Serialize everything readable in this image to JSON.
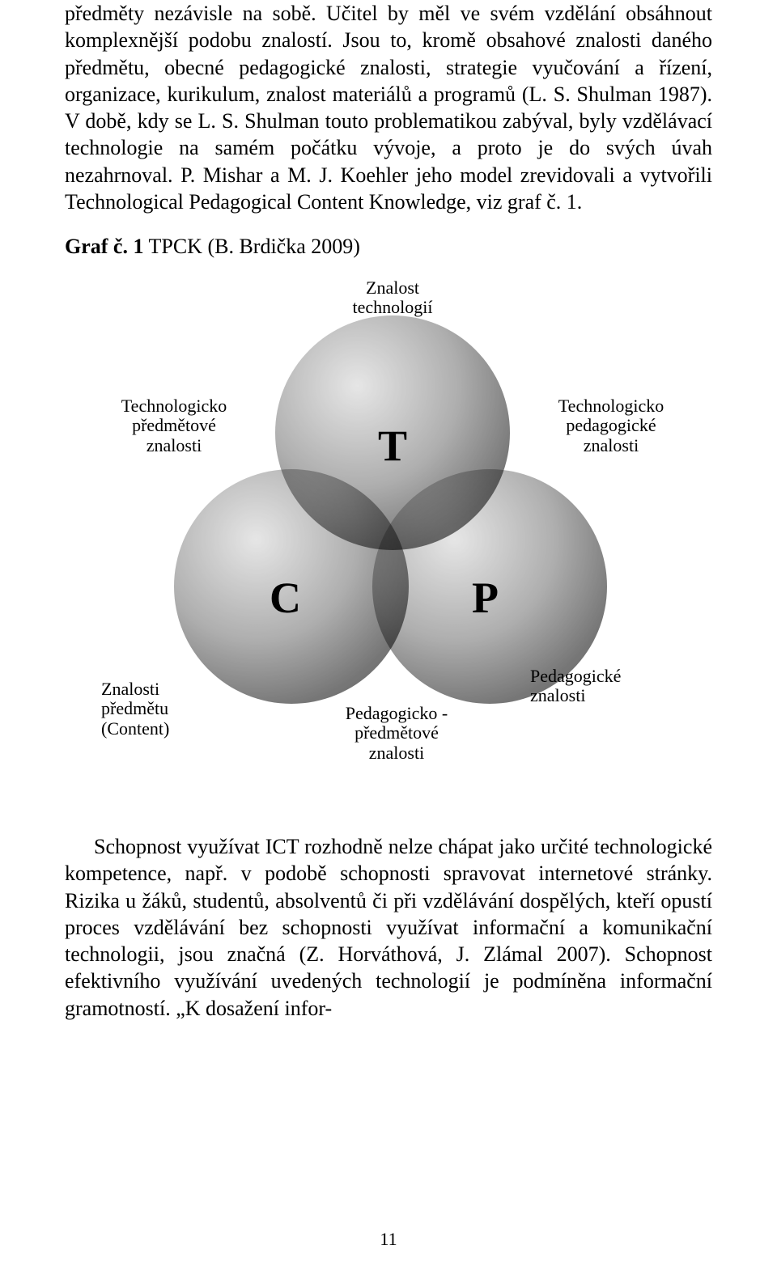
{
  "paragraphs": {
    "p1": "předměty nezávisle na sobě. Učitel by měl ve svém vzdělání obsáhnout komplexnější podobu znalostí. Jsou to, kromě obsahové znalosti daného předmětu, obecné pedagogické znalosti, strategie vyučování a řízení, organizace, kurikulum, znalost materiálů a programů (L. S. Shulman 1987). V době, kdy se L. S. Shulman touto problematikou zabýval, byly vzdělávací technologie na samém počátku vývoje, a proto je do svých úvah nezahrnoval. P. Mishar a M. J. Koehler jeho model zrevidovali a vytvořili Technological Pedagogical Content Knowledge, viz graf č. 1.",
    "p2": "Schopnost využívat ICT rozhodně nelze chápat jako určité technologické kompetence, např. v podobě schopnosti spravovat internetové stránky. Rizika u žáků, studentů, absolventů či při vzdělávání dospělých, kteří opustí proces vzdělávání bez schopnosti využívat informační a komunikační technologii, jsou značná (Z. Horváthová, J. Zlámal 2007). Schopnost efektivního využívání uvedených technologií je podmíněna informační gramotností. „K dosažení infor-"
  },
  "graf": {
    "label_bold": "Graf č. 1",
    "label_rest": " TPCK (B. Brdička 2009)"
  },
  "diagram": {
    "letters": {
      "t": "T",
      "c": "C",
      "p": "P"
    },
    "labels": {
      "top": "Znalost\ntechnologií",
      "upper_left": "Technologicko\npředmětové\nznalosti",
      "upper_right": "Technologicko\npedagogické\nznalosti",
      "lower_left": "Znalosti\npředmětu\n(Content)",
      "lower_mid": "Pedagogicko -\npředmětové\nznalosti",
      "lower_right": "Pedagogické\nznalosti"
    }
  },
  "pagenum": "11"
}
